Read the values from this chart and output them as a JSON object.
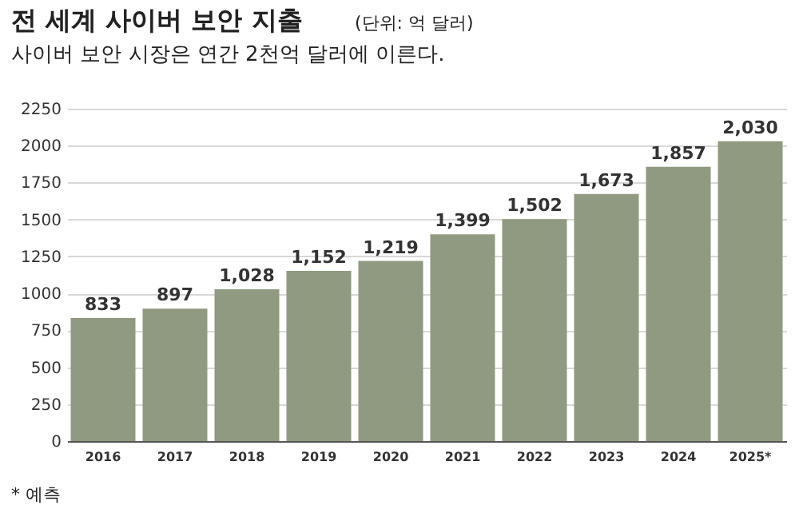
{
  "chart_data": {
    "type": "bar",
    "title": "전 세계 사이버 보안 지출",
    "subtitle": "사이버 보안 시장은 연간 2천억 달러에 이른다.",
    "annotations": [
      "(단위: 억 달러)",
      "* 예측"
    ],
    "categories": [
      "2016",
      "2017",
      "2018",
      "2019",
      "2020",
      "2021",
      "2022",
      "2023",
      "2024",
      "2025*"
    ],
    "values": [
      833,
      897,
      1028,
      1152,
      1219,
      1399,
      1502,
      1673,
      1857,
      2030
    ],
    "value_labels": [
      "833",
      "897",
      "1,028",
      "1,152",
      "1,219",
      "1,399",
      "1,502",
      "1,673",
      "1,857",
      "2,030"
    ],
    "color": "#8f9a80",
    "ylim": [
      0,
      2250
    ],
    "yticks": [
      0,
      250,
      500,
      750,
      1000,
      1250,
      1500,
      1750,
      2000,
      2250
    ],
    "grid": "y"
  }
}
